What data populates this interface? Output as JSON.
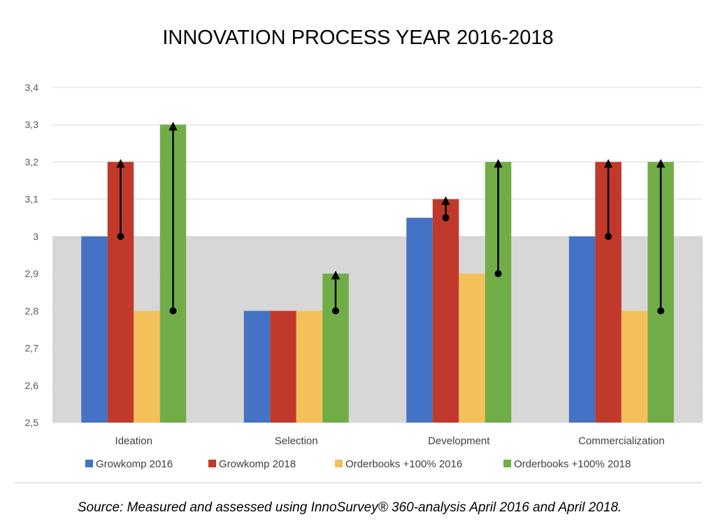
{
  "chart_data": {
    "type": "bar",
    "title": "INNOVATION PROCESS YEAR 2016-2018",
    "categories": [
      "Ideation",
      "Selection",
      "Development",
      "Commercialization"
    ],
    "series": [
      {
        "name": "Growkomp 2016",
        "color": "#4472C4",
        "values": [
          3.0,
          2.8,
          3.05,
          3.0
        ]
      },
      {
        "name": "Growkomp 2018",
        "color": "#C0392B",
        "values": [
          3.2,
          2.8,
          3.1,
          3.2
        ]
      },
      {
        "name": "Orderbooks +100% 2016",
        "color": "#F4C05A",
        "values": [
          2.8,
          2.8,
          2.9,
          2.8
        ]
      },
      {
        "name": "Orderbooks +100% 2018",
        "color": "#70AD47",
        "values": [
          3.3,
          2.9,
          3.2,
          3.2
        ]
      }
    ],
    "y_ticks": [
      "2,5",
      "2,6",
      "2,7",
      "2,8",
      "2,9",
      "3",
      "3,1",
      "3,2",
      "3,3",
      "3,4"
    ],
    "ylim": [
      2.5,
      3.4
    ],
    "grid": true,
    "legend_position": "bottom",
    "shaded_band": {
      "from": 2.5,
      "to": 3.0,
      "color": "#BFBFBF"
    },
    "arrows": [
      {
        "category": "Ideation",
        "series": "Growkomp 2018",
        "from": 3.0,
        "to": 3.2
      },
      {
        "category": "Ideation",
        "series": "Orderbooks +100% 2018",
        "from": 2.8,
        "to": 3.3
      },
      {
        "category": "Selection",
        "series": "Orderbooks +100% 2018",
        "from": 2.8,
        "to": 2.9
      },
      {
        "category": "Development",
        "series": "Growkomp 2018",
        "from": 3.05,
        "to": 3.1
      },
      {
        "category": "Development",
        "series": "Orderbooks +100% 2018",
        "from": 2.9,
        "to": 3.2
      },
      {
        "category": "Commercialization",
        "series": "Growkomp 2018",
        "from": 3.0,
        "to": 3.2
      },
      {
        "category": "Commercialization",
        "series": "Orderbooks +100% 2018",
        "from": 2.8,
        "to": 3.2
      }
    ]
  },
  "source_note": "Source: Measured and assessed using InnoSurvey® 360-analysis April 2016 and April 2018."
}
